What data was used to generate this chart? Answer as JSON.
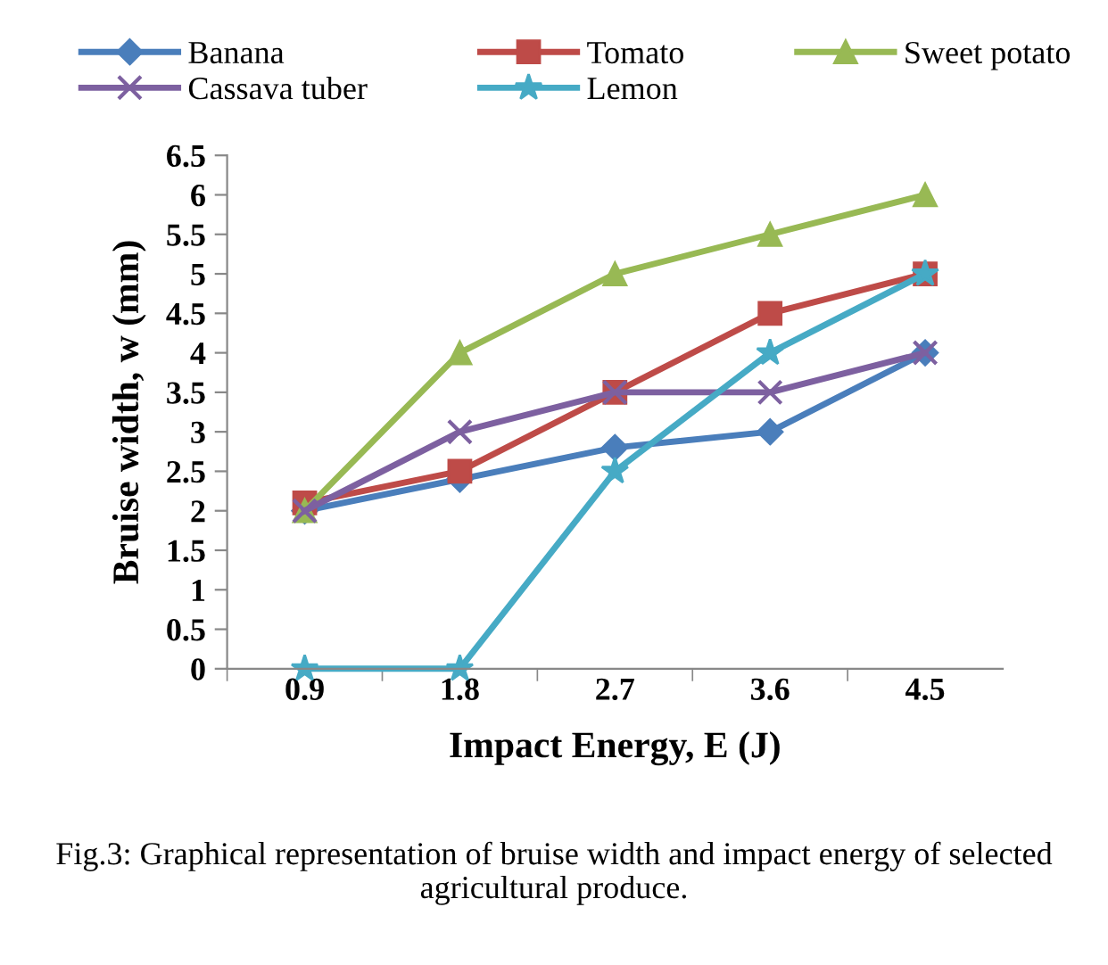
{
  "chart_data": {
    "type": "line",
    "xlabel": "Impact Energy, E (J)",
    "ylabel": "Bruise width, w (mm)",
    "categories": [
      "0.9",
      "1.8",
      "2.7",
      "3.6",
      "4.5"
    ],
    "series": [
      {
        "name": "Banana",
        "color": "#4a7ebb",
        "marker": "diamond",
        "values": [
          2.0,
          2.4,
          2.8,
          3.0,
          4.0
        ]
      },
      {
        "name": "Tomato",
        "color": "#be4b48",
        "marker": "square",
        "values": [
          2.1,
          2.5,
          3.5,
          4.5,
          5.0
        ]
      },
      {
        "name": "Sweet potato",
        "color": "#98b954",
        "marker": "triangle",
        "values": [
          2.0,
          4.0,
          5.0,
          5.5,
          6.0
        ]
      },
      {
        "name": "Cassava tuber",
        "color": "#7d60a0",
        "marker": "cross",
        "values": [
          2.0,
          3.0,
          3.5,
          3.5,
          4.0
        ]
      },
      {
        "name": "Lemon",
        "color": "#46aac5",
        "marker": "star",
        "values": [
          0,
          0,
          2.5,
          4.0,
          5.0
        ]
      }
    ],
    "ylim": [
      0,
      6.5
    ],
    "yticks": [
      0,
      0.5,
      1,
      1.5,
      2,
      2.5,
      3,
      3.5,
      4,
      4.5,
      5,
      5.5,
      6,
      6.5
    ],
    "grid": false,
    "legend": "top",
    "line_style": "solid",
    "annotations": [
      "Fig.3: Graphical representation of bruise width and impact energy of selected agricultural produce."
    ]
  }
}
